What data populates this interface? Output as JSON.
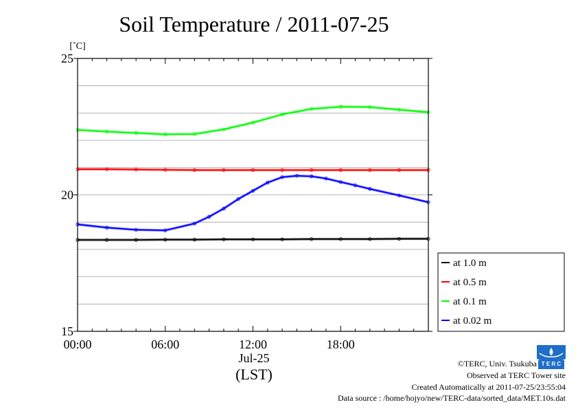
{
  "chart_data": {
    "type": "line",
    "title": "Soil Temperature / 2011-07-25",
    "ylabel": "[˚C]",
    "xlabel_date": "Jul-25",
    "xlabel_unit": "(LST)",
    "ylim": [
      15,
      25
    ],
    "yticks": [
      "15",
      "20",
      "25"
    ],
    "xlim": [
      0,
      24
    ],
    "xticks": [
      {
        "x": 0,
        "label": "00:00"
      },
      {
        "x": 6,
        "label": "06:00"
      },
      {
        "x": 12,
        "label": "12:00"
      },
      {
        "x": 18,
        "label": "18:00"
      }
    ],
    "grid": true,
    "legend_position": "bottom-right outside",
    "series": [
      {
        "name": "at 1.0 m",
        "color": "#000000",
        "x": [
          0,
          2,
          4,
          6,
          8,
          10,
          12,
          14,
          16,
          18,
          20,
          22,
          24
        ],
        "values": [
          18.35,
          18.35,
          18.35,
          18.36,
          18.36,
          18.37,
          18.37,
          18.37,
          18.38,
          18.38,
          18.38,
          18.39,
          18.39
        ]
      },
      {
        "name": "at 0.5 m",
        "color": "#ff0000",
        "x": [
          0,
          2,
          4,
          6,
          8,
          10,
          12,
          14,
          16,
          18,
          20,
          22,
          24
        ],
        "values": [
          20.94,
          20.94,
          20.93,
          20.92,
          20.91,
          20.91,
          20.91,
          20.91,
          20.91,
          20.91,
          20.91,
          20.91,
          20.91
        ]
      },
      {
        "name": "at 0.1 m",
        "color": "#00ff00",
        "x": [
          0,
          2,
          4,
          6,
          8,
          10,
          12,
          14,
          16,
          18,
          20,
          22,
          24
        ],
        "values": [
          22.38,
          22.32,
          22.27,
          22.22,
          22.23,
          22.4,
          22.65,
          22.95,
          23.15,
          23.23,
          23.22,
          23.12,
          23.03
        ]
      },
      {
        "name": "at 0.02 m",
        "color": "#0000ff",
        "x": [
          0,
          2,
          4,
          6,
          8,
          9,
          10,
          11,
          12,
          13,
          14,
          15,
          16,
          17,
          18,
          19,
          20,
          22,
          24
        ],
        "values": [
          18.92,
          18.8,
          18.72,
          18.7,
          18.95,
          19.2,
          19.5,
          19.85,
          20.15,
          20.45,
          20.65,
          20.7,
          20.68,
          20.6,
          20.47,
          20.35,
          20.22,
          19.98,
          19.73
        ]
      }
    ]
  },
  "footer": {
    "copyright": "©TERC, Univ. Tsukuba",
    "observed": "Observed at TERC Tower site",
    "created": "Created Automatically at 2011-07-25/23:55:04",
    "source": "Data source : /home/hojyo/new/TERC-data/sorted_data/MET.10s.dat",
    "logo_text": "T E R C"
  }
}
